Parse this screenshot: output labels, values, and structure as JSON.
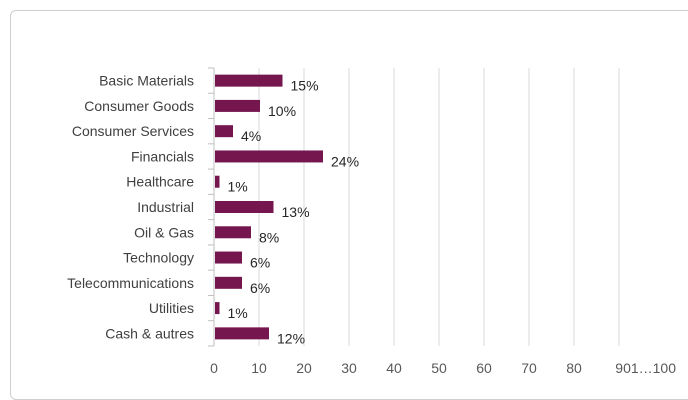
{
  "colors": {
    "bar": "#76164f",
    "grid": "#d9d9d9",
    "axis": "#bfbfbf"
  },
  "chart_data": {
    "type": "bar",
    "orientation": "horizontal",
    "title": "",
    "xlabel": "",
    "ylabel": "",
    "categories": [
      "Basic Materials",
      "Consumer Goods",
      "Consumer Services",
      "Financials",
      "Healthcare",
      "Industrial",
      "Oil & Gas",
      "Technology",
      "Telecommunications",
      "Utilities",
      "Cash & autres"
    ],
    "values": [
      15,
      10,
      4,
      24,
      1,
      13,
      8,
      6,
      6,
      1,
      12
    ],
    "value_labels": [
      "15%",
      "10%",
      "4%",
      "24%",
      "1%",
      "13%",
      "8%",
      "6%",
      "6%",
      "1%",
      "12%"
    ],
    "xlim": [
      0,
      100
    ],
    "xticks": [
      0,
      10,
      20,
      30,
      40,
      50,
      60,
      70,
      80
    ],
    "xtick_labels": [
      "0",
      "10",
      "20",
      "30",
      "40",
      "50",
      "60",
      "70",
      "80"
    ],
    "last_tick_label": "901…100",
    "grid": true,
    "legend": false
  }
}
